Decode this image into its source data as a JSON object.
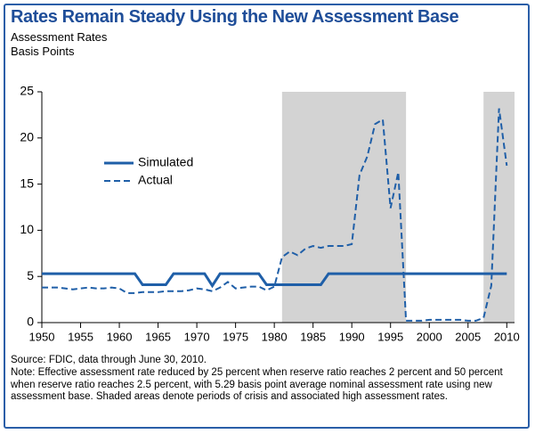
{
  "chart_data": {
    "type": "line",
    "title": "Rates Remain Steady Using the New Assessment Base",
    "subtitle": "Assessment Rates",
    "y_label": "Basis Points",
    "source": "Source: FDIC, data through June 30, 2010.",
    "note": "Note: Effective assessment rate reduced by 25 percent when reserve ratio reaches 2 percent and 50 percent when reserve ratio reaches 2.5 percent, with 5.29 basis point average nominal assessment rate using new assessment base. Shaded areas denote periods of crisis and associated high assessment rates.",
    "x": [
      1950,
      1951,
      1952,
      1953,
      1954,
      1955,
      1956,
      1957,
      1958,
      1959,
      1960,
      1961,
      1962,
      1963,
      1964,
      1965,
      1966,
      1967,
      1968,
      1969,
      1970,
      1971,
      1972,
      1973,
      1974,
      1975,
      1976,
      1977,
      1978,
      1979,
      1980,
      1981,
      1982,
      1983,
      1984,
      1985,
      1986,
      1987,
      1988,
      1989,
      1990,
      1991,
      1992,
      1993,
      1994,
      1995,
      1996,
      1997,
      1998,
      1999,
      2000,
      2001,
      2002,
      2003,
      2004,
      2005,
      2006,
      2007,
      2008,
      2009,
      2010
    ],
    "series": [
      {
        "name": "Simulated",
        "color": "#1f5fa8",
        "dash": false,
        "values": [
          5.3,
          5.3,
          5.3,
          5.3,
          5.3,
          5.3,
          5.3,
          5.3,
          5.3,
          5.3,
          5.3,
          5.3,
          5.3,
          4.1,
          4.1,
          4.1,
          4.1,
          5.3,
          5.3,
          5.3,
          5.3,
          5.3,
          4.0,
          5.3,
          5.3,
          5.3,
          5.3,
          5.3,
          5.3,
          4.1,
          4.1,
          4.1,
          4.1,
          4.1,
          4.1,
          4.1,
          4.1,
          5.3,
          5.3,
          5.3,
          5.3,
          5.3,
          5.3,
          5.3,
          5.3,
          5.3,
          5.3,
          5.3,
          5.3,
          5.3,
          5.3,
          5.3,
          5.3,
          5.3,
          5.3,
          5.3,
          5.3,
          5.3,
          5.3,
          5.3,
          5.3
        ]
      },
      {
        "name": "Actual",
        "color": "#1f5fa8",
        "dash": true,
        "values": [
          3.8,
          3.8,
          3.8,
          3.7,
          3.6,
          3.7,
          3.8,
          3.7,
          3.7,
          3.8,
          3.7,
          3.2,
          3.2,
          3.3,
          3.3,
          3.3,
          3.4,
          3.4,
          3.4,
          3.5,
          3.7,
          3.6,
          3.4,
          3.8,
          4.4,
          3.7,
          3.8,
          3.9,
          3.9,
          3.5,
          3.9,
          7.1,
          7.7,
          7.3,
          8.0,
          8.3,
          8.1,
          8.3,
          8.3,
          8.3,
          8.5,
          16.0,
          18.0,
          21.5,
          22.0,
          12.4,
          16.3,
          0.2,
          0.2,
          0.2,
          0.3,
          0.3,
          0.3,
          0.3,
          0.3,
          0.2,
          0.2,
          0.5,
          4.0,
          23.2,
          17.0
        ]
      }
    ],
    "shaded_regions": [
      [
        1981,
        1997
      ],
      [
        2007,
        2011
      ]
    ],
    "shade_color": "#d3d3d3",
    "xlim": [
      1950,
      2011
    ],
    "xticks": [
      1950,
      1955,
      1960,
      1965,
      1970,
      1975,
      1980,
      1985,
      1990,
      1995,
      2000,
      2005,
      2010
    ],
    "ylim": [
      0,
      25
    ],
    "yticks": [
      0,
      5,
      10,
      15,
      20,
      25
    ]
  }
}
